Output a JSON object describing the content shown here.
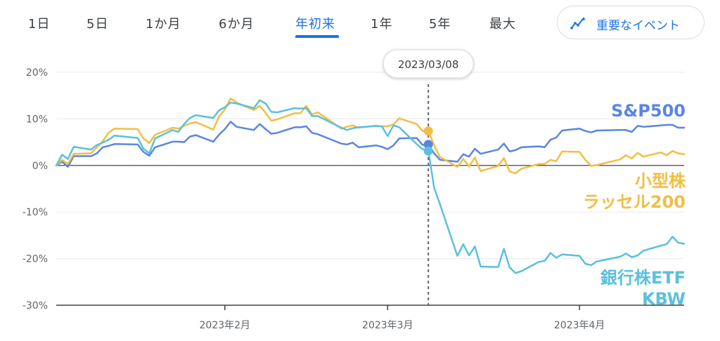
{
  "tabs": [
    {
      "label": "1日",
      "active": false
    },
    {
      "label": "5日",
      "active": false
    },
    {
      "label": "1か月",
      "active": false
    },
    {
      "label": "6か月",
      "active": false
    },
    {
      "label": "年初来",
      "active": true
    },
    {
      "label": "1年",
      "active": false
    },
    {
      "label": "5年",
      "active": false
    },
    {
      "label": "最大",
      "active": false
    }
  ],
  "events_button": {
    "label": "重要なイベント",
    "icon": "sparkline-icon"
  },
  "colors": {
    "accent": "#1a73e8",
    "sp500": "#5a86e0",
    "russell": "#f2be42",
    "kbw": "#5bc0dc",
    "zero_line": "#5f6368",
    "grid": "#e8eaed"
  },
  "chart_data": {
    "type": "line",
    "xlabel": "",
    "ylabel": "",
    "ylim": [
      -30,
      20
    ],
    "yticks": [
      20,
      10,
      0,
      -10,
      -20,
      -30
    ],
    "ytick_labels": [
      "20%",
      "10%",
      "0%",
      "-10%",
      "-20%",
      "-30%"
    ],
    "x_tick_labels": [
      {
        "date": "2023-02-01",
        "label": "2023年2月"
      },
      {
        "date": "2023-03-01",
        "label": "2023年3月"
      },
      {
        "date": "2023-04-03",
        "label": "2023年4月"
      }
    ],
    "xlim": [
      "2023-01-03",
      "2023-04-21"
    ],
    "grid": "horizontal",
    "marker": {
      "date": "2023-03-08",
      "label": "2023/03/08"
    },
    "series": [
      {
        "name": "S&P500",
        "label_lines": [
          "S&P500"
        ],
        "color_key": "sp500",
        "x": [
          "2023-01-03",
          "2023-01-04",
          "2023-01-05",
          "2023-01-06",
          "2023-01-09",
          "2023-01-10",
          "2023-01-11",
          "2023-01-12",
          "2023-01-13",
          "2023-01-17",
          "2023-01-18",
          "2023-01-19",
          "2023-01-20",
          "2023-01-23",
          "2023-01-24",
          "2023-01-25",
          "2023-01-26",
          "2023-01-27",
          "2023-01-30",
          "2023-01-31",
          "2023-02-01",
          "2023-02-02",
          "2023-02-03",
          "2023-02-06",
          "2023-02-07",
          "2023-02-08",
          "2023-02-09",
          "2023-02-10",
          "2023-02-13",
          "2023-02-14",
          "2023-02-15",
          "2023-02-16",
          "2023-02-17",
          "2023-02-21",
          "2023-02-22",
          "2023-02-23",
          "2023-02-24",
          "2023-02-27",
          "2023-02-28",
          "2023-03-01",
          "2023-03-02",
          "2023-03-03",
          "2023-03-06",
          "2023-03-07",
          "2023-03-08",
          "2023-03-09",
          "2023-03-10",
          "2023-03-13",
          "2023-03-14",
          "2023-03-15",
          "2023-03-16",
          "2023-03-17",
          "2023-03-20",
          "2023-03-21",
          "2023-03-22",
          "2023-03-23",
          "2023-03-24",
          "2023-03-27",
          "2023-03-28",
          "2023-03-29",
          "2023-03-30",
          "2023-03-31",
          "2023-04-03",
          "2023-04-04",
          "2023-04-05",
          "2023-04-06",
          "2023-04-10",
          "2023-04-11",
          "2023-04-12",
          "2023-04-13",
          "2023-04-14",
          "2023-04-17",
          "2023-04-18",
          "2023-04-19",
          "2023-04-20",
          "2023-04-21"
        ],
        "values": [
          0,
          0.8,
          -0.3,
          2,
          2,
          2.6,
          3.9,
          4.2,
          4.6,
          4.5,
          2.9,
          2.1,
          3.9,
          5.1,
          5.1,
          5,
          6.2,
          6.5,
          5.1,
          6.6,
          7.8,
          9.4,
          8.3,
          7.6,
          8.9,
          7.8,
          6.8,
          7,
          8.2,
          8.2,
          8.4,
          7,
          6.7,
          4.7,
          4.5,
          4.9,
          3.9,
          4.3,
          4,
          3.5,
          4.3,
          5.8,
          5.9,
          4.4,
          4.5,
          2.6,
          1.2,
          0.8,
          2.4,
          1.9,
          3.6,
          2.5,
          3.4,
          4.7,
          3,
          3.3,
          3.9,
          4.1,
          3.9,
          5.5,
          6,
          7.5,
          7.9,
          7.4,
          7.1,
          7.5,
          7.6,
          7.6,
          7.2,
          8.5,
          8.3,
          8.6,
          8.7,
          8.7,
          8.1,
          8.1
        ]
      },
      {
        "name": "小型株 ラッセル200",
        "label_lines": [
          "小型株",
          "ラッセル200"
        ],
        "color_key": "russell",
        "x": [
          "2023-01-03",
          "2023-01-04",
          "2023-01-05",
          "2023-01-06",
          "2023-01-09",
          "2023-01-10",
          "2023-01-11",
          "2023-01-12",
          "2023-01-13",
          "2023-01-17",
          "2023-01-18",
          "2023-01-19",
          "2023-01-20",
          "2023-01-23",
          "2023-01-24",
          "2023-01-25",
          "2023-01-26",
          "2023-01-27",
          "2023-01-30",
          "2023-01-31",
          "2023-02-01",
          "2023-02-02",
          "2023-02-03",
          "2023-02-06",
          "2023-02-07",
          "2023-02-08",
          "2023-02-09",
          "2023-02-10",
          "2023-02-13",
          "2023-02-14",
          "2023-02-15",
          "2023-02-16",
          "2023-02-17",
          "2023-02-21",
          "2023-02-22",
          "2023-02-23",
          "2023-02-24",
          "2023-02-27",
          "2023-02-28",
          "2023-03-01",
          "2023-03-02",
          "2023-03-03",
          "2023-03-06",
          "2023-03-07",
          "2023-03-08",
          "2023-03-09",
          "2023-03-10",
          "2023-03-13",
          "2023-03-14",
          "2023-03-15",
          "2023-03-16",
          "2023-03-17",
          "2023-03-20",
          "2023-03-21",
          "2023-03-22",
          "2023-03-23",
          "2023-03-24",
          "2023-03-27",
          "2023-03-28",
          "2023-03-29",
          "2023-03-30",
          "2023-03-31",
          "2023-04-03",
          "2023-04-04",
          "2023-04-05",
          "2023-04-06",
          "2023-04-10",
          "2023-04-11",
          "2023-04-12",
          "2023-04-13",
          "2023-04-14",
          "2023-04-17",
          "2023-04-18",
          "2023-04-19",
          "2023-04-20",
          "2023-04-21"
        ],
        "values": [
          0,
          1.2,
          0.3,
          2.5,
          2.6,
          3.9,
          5.2,
          7,
          7.9,
          7.8,
          5.8,
          4.8,
          6.6,
          8.1,
          7.9,
          8.5,
          9,
          9.3,
          7.7,
          10.5,
          12,
          14.4,
          13.5,
          11.9,
          12.8,
          11.3,
          9.6,
          9.9,
          11.2,
          11.2,
          12.8,
          11,
          11.4,
          7.9,
          8.3,
          8.6,
          8.1,
          8.5,
          8.4,
          8.4,
          8.8,
          10.1,
          8.9,
          7.4,
          7.4,
          4.3,
          1.8,
          -0.3,
          1.4,
          -0.2,
          1.7,
          -1.2,
          -0.1,
          1.6,
          -1.3,
          -1.7,
          -0.7,
          0.3,
          0.3,
          1.2,
          0.9,
          3,
          2.9,
          1.2,
          -0.1,
          0.1,
          1.3,
          2.2,
          1.5,
          2.7,
          1.9,
          2.8,
          2.2,
          3.1,
          2.6,
          2.4
        ]
      },
      {
        "name": "銀行株ETF KBW",
        "label_lines": [
          "銀行株ETF",
          "KBW"
        ],
        "color_key": "kbw",
        "x": [
          "2023-01-03",
          "2023-01-04",
          "2023-01-05",
          "2023-01-06",
          "2023-01-09",
          "2023-01-10",
          "2023-01-11",
          "2023-01-12",
          "2023-01-13",
          "2023-01-17",
          "2023-01-18",
          "2023-01-19",
          "2023-01-20",
          "2023-01-23",
          "2023-01-24",
          "2023-01-25",
          "2023-01-26",
          "2023-01-27",
          "2023-01-30",
          "2023-01-31",
          "2023-02-01",
          "2023-02-02",
          "2023-02-03",
          "2023-02-06",
          "2023-02-07",
          "2023-02-08",
          "2023-02-09",
          "2023-02-10",
          "2023-02-13",
          "2023-02-14",
          "2023-02-15",
          "2023-02-16",
          "2023-02-17",
          "2023-02-21",
          "2023-02-22",
          "2023-02-23",
          "2023-02-24",
          "2023-02-27",
          "2023-02-28",
          "2023-03-01",
          "2023-03-02",
          "2023-03-03",
          "2023-03-06",
          "2023-03-07",
          "2023-03-08",
          "2023-03-09",
          "2023-03-10",
          "2023-03-13",
          "2023-03-14",
          "2023-03-15",
          "2023-03-16",
          "2023-03-17",
          "2023-03-20",
          "2023-03-21",
          "2023-03-22",
          "2023-03-23",
          "2023-03-24",
          "2023-03-27",
          "2023-03-28",
          "2023-03-29",
          "2023-03-30",
          "2023-03-31",
          "2023-04-03",
          "2023-04-04",
          "2023-04-05",
          "2023-04-06",
          "2023-04-10",
          "2023-04-11",
          "2023-04-12",
          "2023-04-13",
          "2023-04-14",
          "2023-04-17",
          "2023-04-18",
          "2023-04-19",
          "2023-04-20",
          "2023-04-21"
        ],
        "values": [
          0,
          2.3,
          1.4,
          4,
          3.4,
          4.4,
          4.9,
          5.5,
          6.4,
          5.9,
          3.6,
          2.6,
          5.8,
          7.6,
          7.2,
          8.9,
          10.2,
          10.8,
          10.2,
          11.8,
          12.5,
          13.5,
          13.3,
          12.3,
          14,
          13.3,
          11.5,
          11.4,
          12.3,
          12.2,
          12.3,
          10.6,
          10.6,
          8.1,
          7.6,
          8,
          8.2,
          8.5,
          8.4,
          6.3,
          8.6,
          8.2,
          4.6,
          3.5,
          3.1,
          -4.8,
          -8.3,
          -19.4,
          -16.9,
          -19.3,
          -17.4,
          -21.7,
          -21.8,
          -17.9,
          -21.9,
          -23.1,
          -22.7,
          -20.7,
          -20.5,
          -18.8,
          -19.8,
          -19.1,
          -19.4,
          -21.1,
          -21.4,
          -20.6,
          -19.6,
          -18.9,
          -19.7,
          -19.3,
          -18.3,
          -17.2,
          -16.9,
          -15.3,
          -16.6,
          -16.8
        ]
      }
    ]
  }
}
